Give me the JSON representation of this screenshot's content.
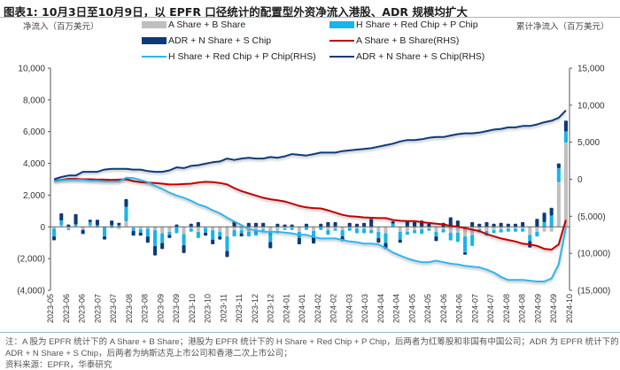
{
  "title": "图表1:  10月3日至10月9日，以 EPFR 口径统计的配置型外资净流入港股、ADR 规模均扩大",
  "left_unit": "净流入（百万美元）",
  "right_unit": "累计净流入（百万美元）",
  "colors": {
    "a_share": "#bfbfbf",
    "h_share": "#19b4ec",
    "adr": "#0d3b7a",
    "a_line": "#c00000",
    "h_line": "#2eb5ee",
    "adr_line": "#0d3b7a"
  },
  "legend": [
    {
      "label": "A Share + B Share",
      "kind": "box",
      "color_key": "a_share"
    },
    {
      "label": "H Share + Red Chip + P Chip",
      "kind": "box",
      "color_key": "h_share"
    },
    {
      "label": "ADR + N Share + S Chip",
      "kind": "box",
      "color_key": "adr"
    },
    {
      "label": "A Share + B Share(RHS)",
      "kind": "line",
      "color_key": "a_line"
    },
    {
      "label": "H Share + Red Chip + P Chip(RHS)",
      "kind": "line",
      "color_key": "h_line"
    },
    {
      "label": "ADR + N Share + S Chip(RHS)",
      "kind": "line",
      "color_key": "adr_line"
    }
  ],
  "notes": [
    "注：A 股为 EPFR 统计下的 A Share + B Share；港股为 EPFR 统计下的 H Share + Red Chip + P Chip，后两者为红筹股和非国有中国公司；ADR 为 EPFR 统计下的",
    "ADR + N Share + S Chip，后两者为纳斯达克上市公司和香港二次上市公司；",
    "资料来源：EPFR，华泰研究"
  ],
  "chart_data": {
    "type": "bar",
    "title": "图表1:  10月3日至10月9日，以 EPFR 口径统计的配置型外资净流入港股、ADR 规模均扩大",
    "xlabel": "",
    "ylabel": "净流入（百万美元）",
    "y2label": "累计净流入（百万美元）",
    "ylim": [
      -4000,
      10000
    ],
    "y2lim": [
      -15000,
      15000
    ],
    "yticks": [
      "(4,000)",
      "(2,000)",
      "0",
      "2,000",
      "4,000",
      "6,000",
      "8,000",
      "10,000"
    ],
    "yticks_values": [
      -4000,
      -2000,
      0,
      2000,
      4000,
      6000,
      8000,
      10000
    ],
    "y2ticks": [
      "(15,000)",
      "(10,000)",
      "(5,000)",
      "0",
      "5,000",
      "10,000",
      "15,000"
    ],
    "y2ticks_values": [
      -15000,
      -10000,
      -5000,
      0,
      5000,
      10000,
      15000
    ],
    "xtick_labels": [
      "2023-05",
      "2023-06",
      "2023-06",
      "2023-07",
      "2023-07",
      "2023-08",
      "2023-08",
      "2023-09",
      "2023-09",
      "2023-10",
      "2023-10",
      "2023-11",
      "2023-11",
      "2023-12",
      "2023-12",
      "2024-01",
      "2024-01",
      "2024-02",
      "2024-02",
      "2024-03",
      "2024-03",
      "2024-04",
      "2024-04",
      "2024-05",
      "2024-05",
      "2024-06",
      "2024-06",
      "2024-07",
      "2024-07",
      "2024-08",
      "2024-08",
      "2024-09",
      "2024-09",
      "2024-10"
    ],
    "grid": false,
    "legend_position": "top",
    "stacked": true,
    "n_periods": 72,
    "series": [
      {
        "name": "A Share + B Share",
        "type": "bar",
        "values": [
          -100,
          100,
          -100,
          50,
          -150,
          100,
          -50,
          0,
          -100,
          -150,
          350,
          -50,
          -150,
          -100,
          -200,
          -400,
          -300,
          0,
          -450,
          -100,
          -300,
          -50,
          -200,
          -300,
          -600,
          -200,
          -200,
          -300,
          -250,
          -150,
          -350,
          -250,
          -100,
          -50,
          -300,
          0,
          -250,
          0,
          -200,
          -100,
          -200,
          -50,
          -100,
          -100,
          -200,
          -300,
          -400,
          0,
          -300,
          -300,
          -200,
          -150,
          -100,
          -300,
          -150,
          -350,
          -350,
          -600,
          -500,
          -150,
          -250,
          -200,
          -150,
          -100,
          -100,
          -100,
          -500,
          -300,
          -300,
          -300,
          2800,
          5300
        ],
        "axis": "left"
      },
      {
        "name": "H Share + Red Chip + P Chip",
        "type": "bar",
        "values": [
          -500,
          300,
          -100,
          100,
          -50,
          200,
          100,
          -600,
          100,
          100,
          900,
          -200,
          -200,
          -500,
          -1000,
          -600,
          -200,
          -400,
          -700,
          -200,
          -400,
          -300,
          -600,
          -300,
          -900,
          -400,
          -200,
          -300,
          -300,
          -100,
          -600,
          -150,
          -100,
          -150,
          -400,
          -200,
          -400,
          -200,
          -300,
          -150,
          -400,
          -200,
          -300,
          -300,
          -200,
          -400,
          -600,
          200,
          -500,
          -200,
          -200,
          -300,
          -150,
          -300,
          -200,
          -500,
          -600,
          -1000,
          -700,
          -200,
          -300,
          -200,
          -200,
          -200,
          -200,
          -200,
          -400,
          -300,
          300,
          700,
          900,
          700
        ],
        "axis": "left"
      },
      {
        "name": "ADR + N Share + S Chip",
        "type": "bar",
        "values": [
          -250,
          450,
          150,
          650,
          -250,
          150,
          350,
          -200,
          300,
          150,
          500,
          -300,
          -200,
          -400,
          -600,
          -400,
          -200,
          150,
          -500,
          200,
          300,
          -200,
          -300,
          -200,
          -400,
          350,
          -200,
          250,
          250,
          250,
          -400,
          200,
          150,
          150,
          -400,
          200,
          -400,
          200,
          300,
          300,
          -300,
          250,
          200,
          250,
          500,
          -300,
          -400,
          150,
          -200,
          400,
          300,
          400,
          200,
          -300,
          250,
          600,
          400,
          -150,
          300,
          200,
          300,
          200,
          250,
          200,
          200,
          300,
          -400,
          500,
          600,
          500,
          300,
          700
        ],
        "axis": "left"
      },
      {
        "name": "A Share + B Share(RHS)",
        "type": "line",
        "axis": "right",
        "values": [
          -200,
          -100,
          50,
          50,
          0,
          0,
          -50,
          -50,
          -100,
          -50,
          0,
          -250,
          -400,
          -450,
          -500,
          -600,
          -700,
          -700,
          -650,
          -600,
          -450,
          -350,
          -400,
          -500,
          -700,
          -1200,
          -1600,
          -1900,
          -2200,
          -2500,
          -2700,
          -2850,
          -3000,
          -3300,
          -3600,
          -3800,
          -3900,
          -3950,
          -4200,
          -4500,
          -4800,
          -5000,
          -5050,
          -5150,
          -5200,
          -5250,
          -5250,
          -5500,
          -5600,
          -5650,
          -5650,
          -5800,
          -5900,
          -6000,
          -6100,
          -6300,
          -6400,
          -6600,
          -6800,
          -7000,
          -7400,
          -7700,
          -8000,
          -8200,
          -8400,
          -8700,
          -8800,
          -9000,
          -9400,
          -9500,
          -8800,
          -5500
        ]
      },
      {
        "name": "H Share + Red Chip + P Chip(RHS)",
        "type": "line",
        "axis": "right",
        "values": [
          -200,
          -100,
          -100,
          -100,
          -100,
          -200,
          -200,
          -300,
          -300,
          -300,
          200,
          150,
          -100,
          -400,
          -900,
          -1300,
          -1800,
          -2200,
          -2500,
          -2900,
          -3400,
          -3700,
          -4200,
          -4600,
          -5200,
          -5700,
          -6200,
          -6700,
          -6900,
          -7100,
          -7100,
          -7100,
          -7200,
          -7300,
          -7500,
          -7500,
          -7800,
          -8000,
          -8000,
          -8000,
          -8200,
          -8400,
          -8500,
          -8700,
          -8700,
          -8800,
          -9300,
          -9900,
          -10300,
          -10700,
          -11000,
          -11200,
          -11200,
          -11000,
          -11200,
          -11400,
          -11500,
          -11700,
          -11800,
          -11900,
          -12200,
          -12600,
          -13200,
          -13600,
          -13600,
          -13600,
          -13700,
          -13800,
          -13800,
          -13400,
          -11500,
          -6500
        ]
      },
      {
        "name": "ADR + N Share + S Chip(RHS)",
        "type": "line",
        "axis": "right",
        "values": [
          0,
          300,
          500,
          500,
          1000,
          1000,
          1000,
          1300,
          1400,
          1400,
          1400,
          1300,
          1300,
          1100,
          1000,
          1000,
          1200,
          1600,
          1500,
          1800,
          1900,
          2100,
          2300,
          2400,
          2800,
          2600,
          2800,
          2900,
          2800,
          2800,
          3000,
          2900,
          3100,
          3400,
          3300,
          3200,
          3400,
          3600,
          3600,
          3600,
          3800,
          3900,
          4000,
          4100,
          4200,
          4400,
          4600,
          4800,
          5100,
          5300,
          5300,
          5400,
          5600,
          5700,
          5700,
          5900,
          6100,
          6200,
          6200,
          6300,
          6500,
          6700,
          6800,
          7000,
          7000,
          7200,
          7200,
          7400,
          7700,
          7900,
          8300,
          9300
        ]
      }
    ]
  }
}
